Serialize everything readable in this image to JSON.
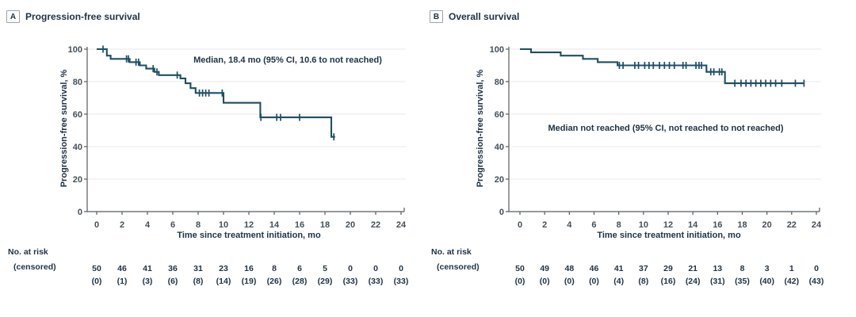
{
  "colors": {
    "curve": "#1F4F63",
    "text": "#1D3245",
    "axis": "#595B5D",
    "grid": "#E9EAEB",
    "tick_text": "#42505A",
    "box_border": "#9EA3A8"
  },
  "chart_data": [
    {
      "panel": "A",
      "title": "Progression-free survival",
      "annotation": "Median, 18.4 mo (95% CI, 10.6 to not reached)",
      "xlabel": "Time since treatment initiation, mo",
      "ylabel": "Progression-free survival, %",
      "type": "line",
      "subtype": "kaplan-meier-step",
      "xlim": [
        0,
        24
      ],
      "ylim": [
        0,
        100
      ],
      "xticks": [
        0,
        2,
        4,
        6,
        8,
        10,
        12,
        14,
        16,
        18,
        20,
        22,
        24
      ],
      "yticks": [
        0,
        20,
        40,
        60,
        80,
        100
      ],
      "grid_y": [
        20,
        40,
        60,
        80,
        100
      ],
      "start": [
        0,
        100
      ],
      "steps": [
        [
          0.8,
          96
        ],
        [
          1.1,
          94
        ],
        [
          2.6,
          92
        ],
        [
          3.4,
          90
        ],
        [
          3.9,
          88
        ],
        [
          4.55,
          86
        ],
        [
          4.9,
          84
        ],
        [
          6.6,
          82
        ],
        [
          7.0,
          79
        ],
        [
          7.4,
          76
        ],
        [
          7.8,
          73
        ],
        [
          10.0,
          67
        ],
        [
          12.9,
          58
        ],
        [
          18.5,
          46
        ]
      ],
      "end_month": 18.8,
      "censors": [
        [
          0.5,
          100
        ],
        [
          2.35,
          94
        ],
        [
          2.5,
          94
        ],
        [
          3.1,
          92
        ],
        [
          3.3,
          92
        ],
        [
          4.45,
          88
        ],
        [
          4.75,
          86
        ],
        [
          6.35,
          84
        ],
        [
          8.1,
          73
        ],
        [
          8.35,
          73
        ],
        [
          8.6,
          73
        ],
        [
          8.85,
          73
        ],
        [
          9.9,
          73
        ],
        [
          12.95,
          58
        ],
        [
          14.2,
          58
        ],
        [
          14.5,
          58
        ],
        [
          16.0,
          58
        ],
        [
          18.7,
          46
        ]
      ],
      "risk_label": "No. at risk",
      "censored_label": "(censored)",
      "at_risk": [
        "50",
        "46",
        "41",
        "36",
        "31",
        "23",
        "16",
        "8",
        "6",
        "5",
        "0",
        "0",
        "0"
      ],
      "censored_counts": [
        "(0)",
        "(1)",
        "(3)",
        "(6)",
        "(8)",
        "(14)",
        "(19)",
        "(26)",
        "(28)",
        "(29)",
        "(33)",
        "(33)",
        "(33)"
      ]
    },
    {
      "panel": "B",
      "title": "Overall survival",
      "annotation": "Median not reached (95% CI, not reached to not reached)",
      "xlabel": "Time since treatment initiation, mo",
      "ylabel": "Progression-free survival, %",
      "type": "line",
      "subtype": "kaplan-meier-step",
      "xlim": [
        0,
        24
      ],
      "ylim": [
        0,
        100
      ],
      "xticks": [
        0,
        2,
        4,
        6,
        8,
        10,
        12,
        14,
        16,
        18,
        20,
        22,
        24
      ],
      "yticks": [
        0,
        20,
        40,
        60,
        80,
        100
      ],
      "grid_y": [
        20,
        40,
        60,
        80,
        100
      ],
      "start": [
        0,
        100
      ],
      "steps": [
        [
          0.9,
          98
        ],
        [
          3.3,
          96
        ],
        [
          5.1,
          94
        ],
        [
          6.3,
          92
        ],
        [
          7.9,
          90
        ],
        [
          15.1,
          86
        ],
        [
          16.6,
          79
        ]
      ],
      "end_month": 23.0,
      "censors": [
        [
          8.05,
          90
        ],
        [
          8.35,
          90
        ],
        [
          9.3,
          90
        ],
        [
          9.6,
          90
        ],
        [
          10.1,
          90
        ],
        [
          10.45,
          90
        ],
        [
          10.8,
          90
        ],
        [
          11.3,
          90
        ],
        [
          11.7,
          90
        ],
        [
          12.1,
          90
        ],
        [
          12.5,
          90
        ],
        [
          13.2,
          90
        ],
        [
          13.45,
          90
        ],
        [
          14.25,
          90
        ],
        [
          14.5,
          90
        ],
        [
          14.7,
          90
        ],
        [
          15.45,
          86
        ],
        [
          15.7,
          86
        ],
        [
          16.15,
          86
        ],
        [
          16.35,
          86
        ],
        [
          17.4,
          79
        ],
        [
          17.9,
          79
        ],
        [
          18.3,
          79
        ],
        [
          18.7,
          79
        ],
        [
          19.1,
          79
        ],
        [
          19.5,
          79
        ],
        [
          19.9,
          79
        ],
        [
          20.3,
          79
        ],
        [
          20.7,
          79
        ],
        [
          21.2,
          79
        ],
        [
          22.3,
          79
        ],
        [
          23.0,
          79
        ]
      ],
      "risk_label": "No. at risk",
      "censored_label": "(censored)",
      "at_risk": [
        "50",
        "49",
        "48",
        "46",
        "41",
        "37",
        "29",
        "21",
        "13",
        "8",
        "3",
        "1",
        "0"
      ],
      "censored_counts": [
        "(0)",
        "(0)",
        "(0)",
        "(0)",
        "(4)",
        "(8)",
        "(16)",
        "(24)",
        "(31)",
        "(35)",
        "(40)",
        "(42)",
        "(43)"
      ]
    }
  ]
}
